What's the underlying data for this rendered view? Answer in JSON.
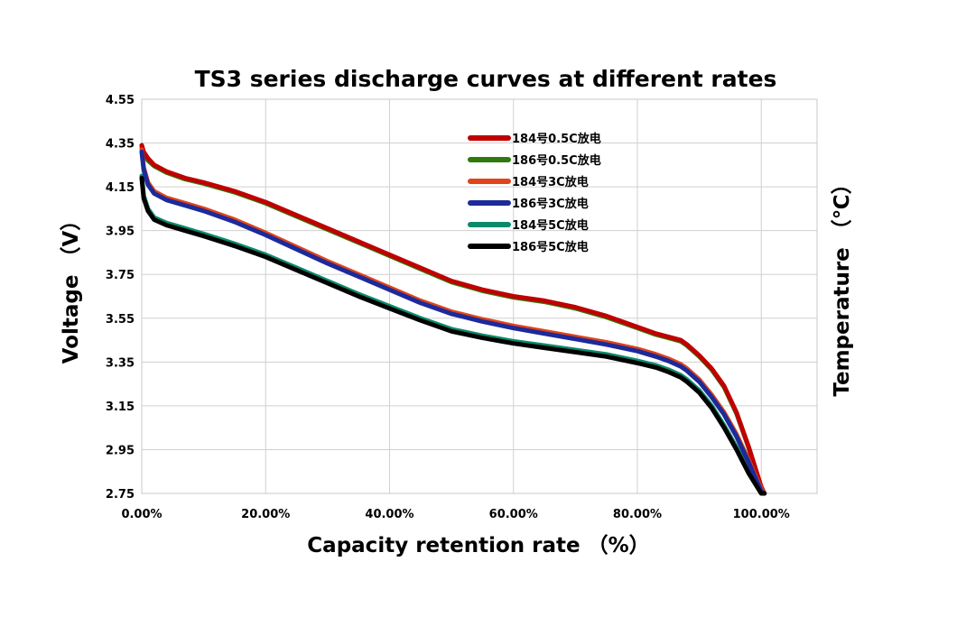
{
  "chart_data": {
    "type": "line",
    "title": "TS3 series discharge curves at different rates",
    "xlabel": "Capacity retention rate （%）",
    "ylabel": "Voltage （V）",
    "y2label": "Temperature （℃）",
    "xlim": [
      0,
      1.09
    ],
    "ylim": [
      2.75,
      4.55
    ],
    "x_ticks": [
      0,
      0.2,
      0.4,
      0.6,
      0.8,
      1.0
    ],
    "x_tick_labels": [
      "0.00%",
      "20.00%",
      "40.00%",
      "60.00%",
      "80.00%",
      "100.00%"
    ],
    "y_ticks": [
      2.75,
      2.95,
      3.15,
      3.35,
      3.55,
      3.75,
      3.95,
      4.15,
      4.35,
      4.55
    ],
    "y_tick_labels": [
      "2.75",
      "2.95",
      "3.15",
      "3.35",
      "3.55",
      "3.75",
      "3.95",
      "4.15",
      "4.35",
      "4.55"
    ],
    "grid": true,
    "legend_position": "top-center",
    "series": [
      {
        "name": "184号0.5C放电",
        "color": "#c00000",
        "x": [
          0,
          0.003,
          0.01,
          0.02,
          0.04,
          0.07,
          0.1,
          0.15,
          0.2,
          0.25,
          0.3,
          0.35,
          0.4,
          0.45,
          0.5,
          0.55,
          0.6,
          0.65,
          0.7,
          0.75,
          0.8,
          0.83,
          0.85,
          0.87,
          0.88,
          0.9,
          0.92,
          0.94,
          0.96,
          0.98,
          1.0,
          1.005
        ],
        "y": [
          4.34,
          4.31,
          4.28,
          4.25,
          4.22,
          4.19,
          4.17,
          4.13,
          4.08,
          4.02,
          3.96,
          3.9,
          3.84,
          3.78,
          3.72,
          3.68,
          3.65,
          3.63,
          3.6,
          3.56,
          3.51,
          3.48,
          3.465,
          3.45,
          3.43,
          3.38,
          3.32,
          3.24,
          3.12,
          2.96,
          2.78,
          2.75
        ]
      },
      {
        "name": "186号0.5C放电",
        "color": "#2e7a0c",
        "x": [
          0,
          0.003,
          0.01,
          0.02,
          0.04,
          0.07,
          0.1,
          0.15,
          0.2,
          0.25,
          0.3,
          0.35,
          0.4,
          0.45,
          0.5,
          0.55,
          0.6,
          0.65,
          0.7,
          0.75,
          0.8,
          0.83,
          0.85,
          0.87,
          0.88,
          0.9,
          0.92,
          0.94,
          0.96,
          0.98,
          1.0,
          1.005
        ],
        "y": [
          4.33,
          4.3,
          4.27,
          4.245,
          4.215,
          4.185,
          4.165,
          4.125,
          4.075,
          4.015,
          3.955,
          3.895,
          3.835,
          3.775,
          3.715,
          3.675,
          3.645,
          3.625,
          3.595,
          3.555,
          3.505,
          3.475,
          3.46,
          3.445,
          3.425,
          3.375,
          3.315,
          3.235,
          3.115,
          2.955,
          2.775,
          2.75
        ]
      },
      {
        "name": "184号3C放电",
        "color": "#e0441a",
        "x": [
          0,
          0.003,
          0.01,
          0.02,
          0.04,
          0.07,
          0.1,
          0.15,
          0.2,
          0.25,
          0.3,
          0.35,
          0.4,
          0.45,
          0.5,
          0.55,
          0.6,
          0.65,
          0.7,
          0.75,
          0.8,
          0.83,
          0.85,
          0.87,
          0.88,
          0.9,
          0.92,
          0.94,
          0.96,
          0.98,
          1.0,
          1.005
        ],
        "y": [
          4.32,
          4.24,
          4.17,
          4.13,
          4.1,
          4.075,
          4.05,
          4.0,
          3.94,
          3.875,
          3.81,
          3.75,
          3.69,
          3.63,
          3.58,
          3.545,
          3.515,
          3.49,
          3.465,
          3.44,
          3.41,
          3.385,
          3.365,
          3.34,
          3.32,
          3.27,
          3.2,
          3.12,
          3.02,
          2.9,
          2.77,
          2.75
        ]
      },
      {
        "name": "186号3C放电",
        "color": "#1c2a9a",
        "x": [
          0,
          0.003,
          0.01,
          0.02,
          0.04,
          0.07,
          0.1,
          0.15,
          0.2,
          0.25,
          0.3,
          0.35,
          0.4,
          0.45,
          0.5,
          0.55,
          0.6,
          0.65,
          0.7,
          0.75,
          0.8,
          0.83,
          0.85,
          0.87,
          0.88,
          0.9,
          0.92,
          0.94,
          0.96,
          0.98,
          1.0,
          1.005
        ],
        "y": [
          4.31,
          4.23,
          4.16,
          4.12,
          4.09,
          4.065,
          4.04,
          3.99,
          3.93,
          3.865,
          3.8,
          3.74,
          3.68,
          3.62,
          3.57,
          3.535,
          3.505,
          3.48,
          3.455,
          3.43,
          3.4,
          3.375,
          3.355,
          3.33,
          3.31,
          3.26,
          3.19,
          3.11,
          3.01,
          2.89,
          2.76,
          2.75
        ]
      },
      {
        "name": "184号5C放电",
        "color": "#0b8a6c",
        "x": [
          0,
          0.003,
          0.01,
          0.02,
          0.04,
          0.07,
          0.1,
          0.15,
          0.2,
          0.25,
          0.3,
          0.35,
          0.4,
          0.45,
          0.5,
          0.55,
          0.6,
          0.65,
          0.7,
          0.75,
          0.8,
          0.83,
          0.85,
          0.87,
          0.88,
          0.9,
          0.92,
          0.94,
          0.96,
          0.98,
          1.0,
          1.005
        ],
        "y": [
          4.2,
          4.11,
          4.05,
          4.01,
          3.985,
          3.96,
          3.935,
          3.89,
          3.84,
          3.78,
          3.72,
          3.66,
          3.605,
          3.55,
          3.5,
          3.47,
          3.445,
          3.425,
          3.405,
          3.385,
          3.355,
          3.335,
          3.315,
          3.29,
          3.27,
          3.22,
          3.15,
          3.06,
          2.96,
          2.85,
          2.76,
          2.75
        ]
      },
      {
        "name": "186号5C放电",
        "color": "#000000",
        "x": [
          0,
          0.003,
          0.01,
          0.02,
          0.04,
          0.07,
          0.1,
          0.15,
          0.2,
          0.25,
          0.3,
          0.35,
          0.4,
          0.45,
          0.5,
          0.55,
          0.6,
          0.65,
          0.7,
          0.75,
          0.8,
          0.83,
          0.85,
          0.87,
          0.88,
          0.9,
          0.92,
          0.94,
          0.96,
          0.98,
          1.0,
          1.005
        ],
        "y": [
          4.19,
          4.1,
          4.04,
          4.0,
          3.975,
          3.95,
          3.925,
          3.88,
          3.83,
          3.77,
          3.71,
          3.65,
          3.595,
          3.54,
          3.49,
          3.46,
          3.435,
          3.415,
          3.395,
          3.375,
          3.345,
          3.325,
          3.305,
          3.28,
          3.26,
          3.21,
          3.14,
          3.05,
          2.95,
          2.84,
          2.75,
          2.75
        ]
      }
    ]
  }
}
